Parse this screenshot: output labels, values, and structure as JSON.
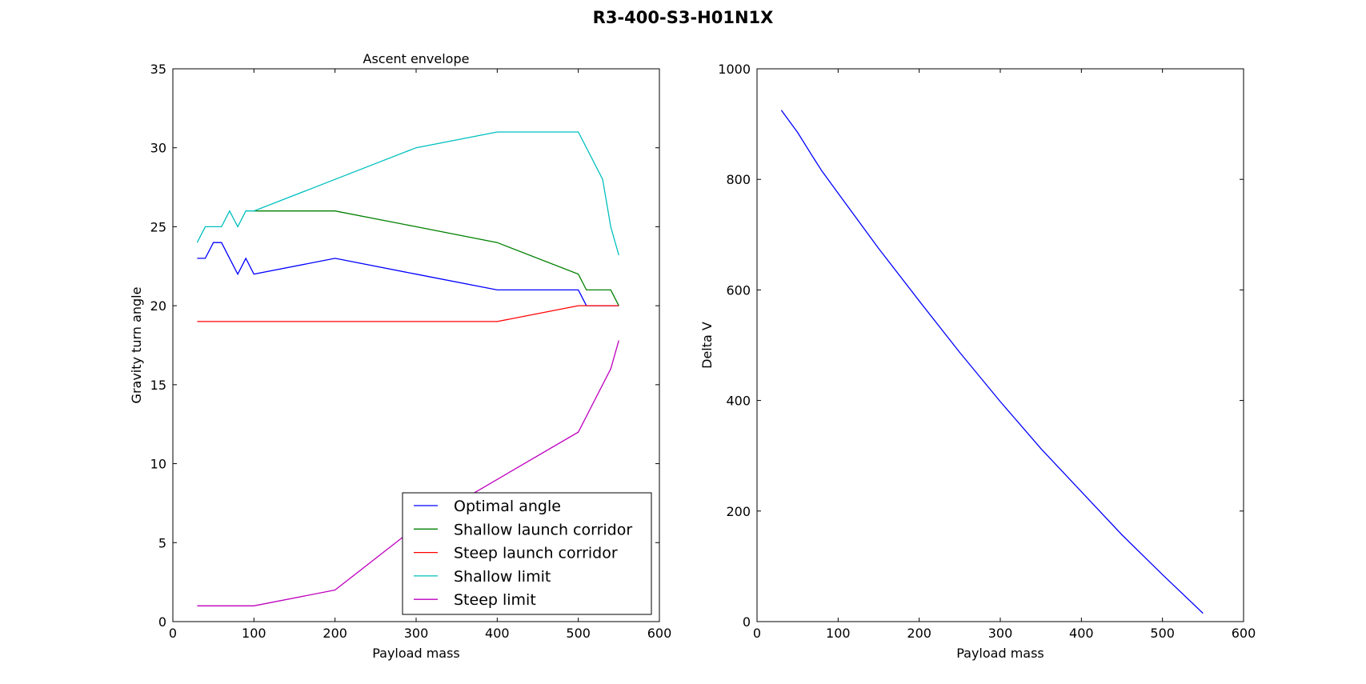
{
  "figure": {
    "title": "R3-400-S3-H01N1X"
  },
  "chart_data": [
    {
      "type": "line",
      "title": "Ascent envelope",
      "xlabel": "Payload mass",
      "ylabel": "Gravity turn angle",
      "xlim": [
        0,
        600
      ],
      "ylim": [
        0,
        35
      ],
      "xticks": [
        0,
        100,
        200,
        300,
        400,
        500,
        600
      ],
      "yticks": [
        0,
        5,
        10,
        15,
        20,
        25,
        30,
        35
      ],
      "grid": false,
      "legend": "lower-right",
      "series": [
        {
          "name": "Optimal angle",
          "color": "#0000ff",
          "x": [
            30,
            40,
            50,
            60,
            70,
            80,
            90,
            100,
            200,
            300,
            400,
            500,
            510,
            520,
            530,
            540,
            550
          ],
          "y": [
            23,
            23,
            24,
            24,
            23,
            22,
            23,
            22,
            23,
            22,
            21,
            21,
            20,
            20,
            20,
            20,
            20
          ]
        },
        {
          "name": "Shallow launch corridor",
          "color": "#008000",
          "x": [
            100,
            200,
            300,
            400,
            500,
            510,
            520,
            530,
            540,
            550
          ],
          "y": [
            26,
            26,
            25,
            24,
            22,
            21,
            21,
            21,
            21,
            20
          ]
        },
        {
          "name": "Steep launch corridor",
          "color": "#ff0000",
          "x": [
            30,
            100,
            200,
            300,
            400,
            500,
            510,
            520,
            530,
            540,
            550
          ],
          "y": [
            19,
            19,
            19,
            19,
            19,
            20,
            20,
            20,
            20,
            20,
            20
          ]
        },
        {
          "name": "Shallow limit",
          "color": "#00bfbf",
          "x": [
            30,
            40,
            50,
            60,
            70,
            80,
            90,
            100,
            200,
            300,
            400,
            500,
            530,
            540,
            550
          ],
          "y": [
            24,
            25,
            25,
            25,
            26,
            25,
            26,
            26,
            28,
            30,
            31,
            31,
            28,
            25,
            23.2
          ]
        },
        {
          "name": "Steep limit",
          "color": "#bf00bf",
          "x": [
            30,
            100,
            200,
            300,
            400,
            500,
            540,
            550
          ],
          "y": [
            1,
            1,
            2,
            6,
            9,
            12,
            16,
            17.8
          ]
        }
      ]
    },
    {
      "type": "line",
      "title": "",
      "xlabel": "Payload mass",
      "ylabel": "Delta V",
      "xlim": [
        0,
        600
      ],
      "ylim": [
        0,
        1000
      ],
      "xticks": [
        0,
        100,
        200,
        300,
        400,
        500,
        600
      ],
      "yticks": [
        0,
        200,
        400,
        600,
        800,
        1000
      ],
      "grid": false,
      "series": [
        {
          "color": "#0000ff",
          "x": [
            30,
            40,
            50,
            70,
            80,
            100,
            150,
            200,
            250,
            300,
            350,
            400,
            450,
            500,
            550
          ],
          "y": [
            925,
            905,
            885,
            838,
            815,
            775,
            675,
            580,
            487,
            398,
            313,
            235,
            157,
            85,
            15
          ]
        }
      ]
    }
  ]
}
